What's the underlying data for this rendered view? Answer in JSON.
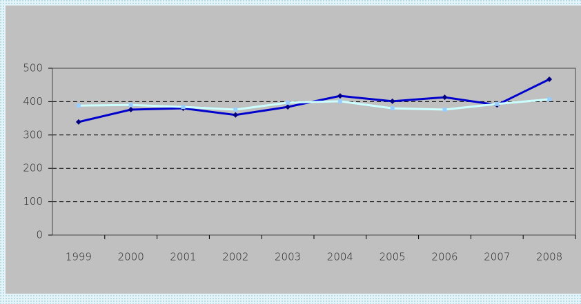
{
  "chart_data": {
    "type": "line",
    "categories": [
      "1999",
      "2000",
      "2001",
      "2002",
      "2003",
      "2004",
      "2005",
      "2006",
      "2007",
      "2008"
    ],
    "series": [
      {
        "color": "#0000cc",
        "marker_color": "#000080",
        "marker": "diamond",
        "values": [
          339,
          376,
          380,
          360,
          384,
          417,
          401,
          413,
          390,
          467
        ]
      },
      {
        "color": "#ccffff",
        "marker_color": "#99ccff",
        "marker": "square",
        "values": [
          388,
          390,
          384,
          376,
          397,
          401,
          380,
          376,
          393,
          407
        ]
      }
    ],
    "ylim": [
      0,
      500
    ],
    "yticks": [
      0,
      100,
      200,
      300,
      400,
      500
    ],
    "grid": true
  }
}
